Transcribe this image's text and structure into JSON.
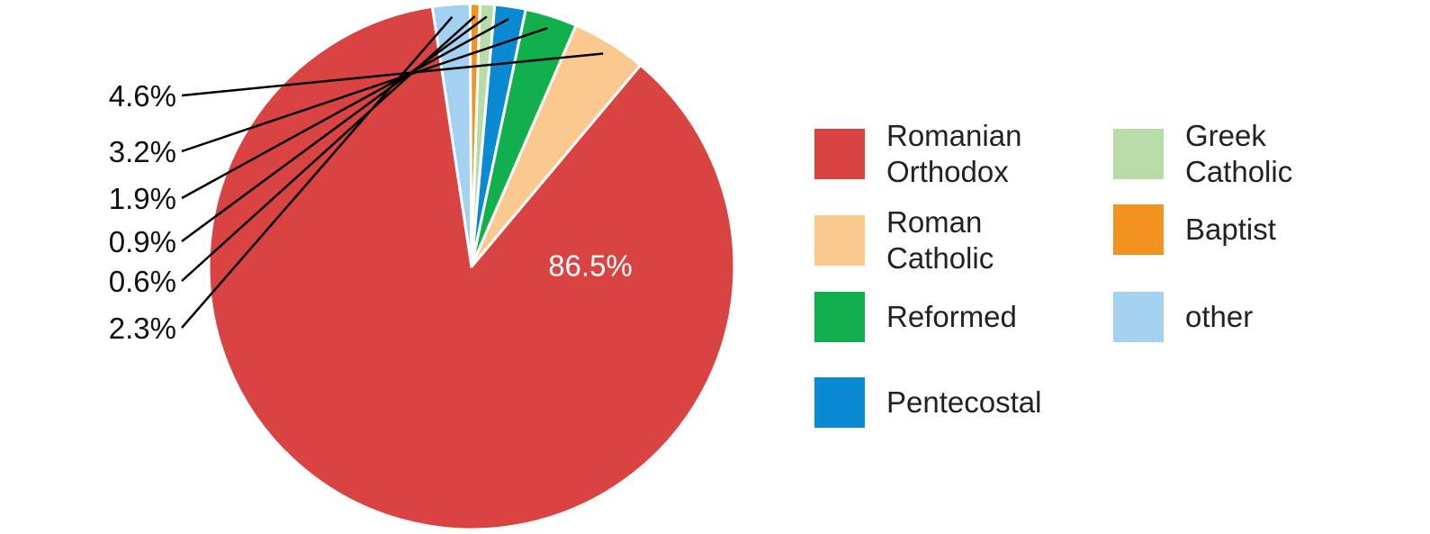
{
  "chart_data": {
    "type": "pie",
    "title": "",
    "slices": [
      {
        "label": "Romanian Orthodox",
        "value": 86.5,
        "value_label": "86.5%",
        "color": "#d94442"
      },
      {
        "label": "other",
        "value": 2.3,
        "value_label": "2.3%",
        "color": "#a5d1f0"
      },
      {
        "label": "Baptist",
        "value": 0.6,
        "value_label": "0.6%",
        "color": "#f3931f"
      },
      {
        "label": "Greek Catholic",
        "value": 0.9,
        "value_label": "0.9%",
        "color": "#b7dca8"
      },
      {
        "label": "Pentecostal",
        "value": 1.9,
        "value_label": "1.9%",
        "color": "#0a8ad2"
      },
      {
        "label": "Reformed",
        "value": 3.2,
        "value_label": "3.2%",
        "color": "#12b04c"
      },
      {
        "label": "Roman Catholic",
        "value": 4.6,
        "value_label": "4.6%",
        "color": "#fbc88f"
      }
    ],
    "legend": {
      "placement": "right",
      "columns": [
        [
          {
            "label": "Romanian\nOrthodox",
            "color": "#d94442"
          },
          {
            "label": "Roman\nCatholic",
            "color": "#fbc88f"
          },
          {
            "label": "Reformed",
            "color": "#12b04c"
          },
          {
            "label": "Pentecostal",
            "color": "#0a8ad2"
          }
        ],
        [
          {
            "label": "Greek\nCatholic",
            "color": "#b7dca8"
          },
          {
            "label": "Baptist",
            "color": "#f3931f"
          },
          {
            "label": "other",
            "color": "#a5d1f0"
          }
        ]
      ]
    }
  }
}
